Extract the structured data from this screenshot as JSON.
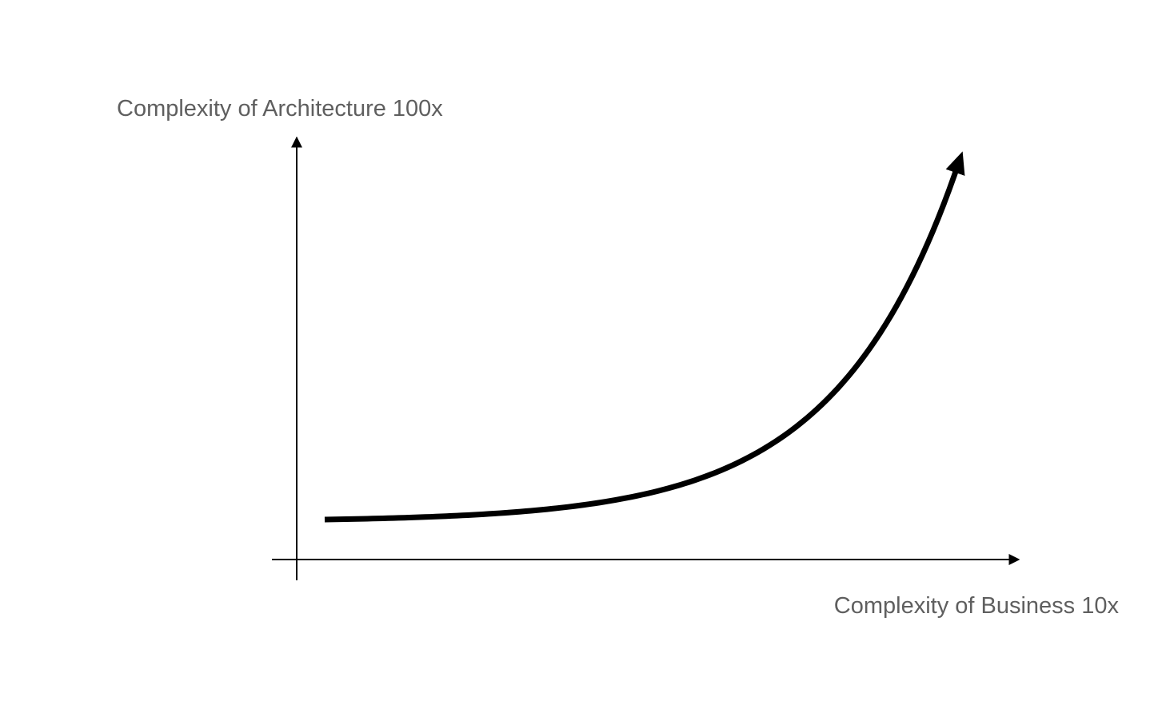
{
  "chart_data": {
    "type": "line",
    "title": "",
    "xlabel": "Complexity of Business 10x",
    "ylabel": "Complexity of Architecture 100x",
    "grid": false,
    "legend": "none",
    "x_ticks": [],
    "y_ticks": [],
    "curve": "exponential",
    "line_color": "#000000",
    "label_color": "#5f5f5f"
  }
}
